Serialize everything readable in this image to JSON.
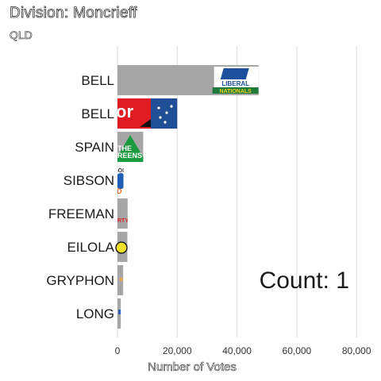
{
  "title": "Division: Moncrieff",
  "subtitle": "QLD",
  "count_text": "Count:  1",
  "chart_data": {
    "type": "bar",
    "orientation": "horizontal",
    "categories": [
      "BELL",
      "BELL",
      "SPAIN",
      "SIBSON",
      "FREEMAN",
      "EILOLA",
      "GRYPHON",
      "LONG"
    ],
    "values": [
      47200,
      20000,
      8600,
      2000,
      3400,
      3300,
      1900,
      1100
    ],
    "party_logos": [
      "Liberal National",
      "Labor",
      "The Greens",
      "Pauline Hanson's One Nation",
      "",
      "",
      "",
      ""
    ],
    "xlabel": "Number of Votes",
    "xlim": [
      0,
      85000
    ],
    "xticks": [
      0,
      20000,
      40000,
      60000,
      80000
    ],
    "xtick_labels": [
      "0",
      "20,000",
      "40,000",
      "60,000",
      "80,000"
    ],
    "grid": true,
    "bar_color": "#a6a6a6"
  }
}
